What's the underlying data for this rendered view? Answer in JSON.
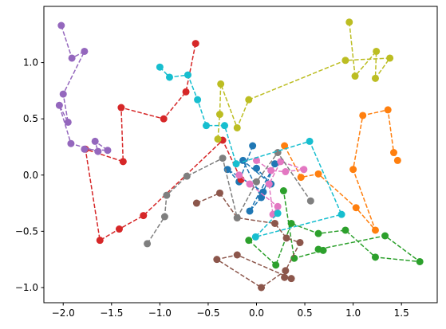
{
  "chart_data": {
    "type": "line",
    "xlim": [
      -2.2,
      1.87
    ],
    "ylim": [
      -1.135,
      1.5
    ],
    "xticks": [
      {
        "value": -2,
        "label": "−2.0"
      },
      {
        "value": -1.5,
        "label": "−1.5"
      },
      {
        "value": -1,
        "label": "−1.0"
      },
      {
        "value": -0.5,
        "label": "−0.5"
      },
      {
        "value": 0,
        "label": "0.0"
      },
      {
        "value": 0.5,
        "label": "0.5"
      },
      {
        "value": 1,
        "label": "1.0"
      },
      {
        "value": 1.5,
        "label": "1.5"
      }
    ],
    "yticks": [
      {
        "value": -1,
        "label": "−1.0"
      },
      {
        "value": -0.5,
        "label": "−0.5"
      },
      {
        "value": 0,
        "label": "0.0"
      },
      {
        "value": 0.5,
        "label": "0.5"
      },
      {
        "value": 1,
        "label": "1.0"
      }
    ],
    "series": [
      {
        "color": "#1f77b4",
        "x": [
          -0.04,
          -0.18,
          -0.3,
          0.07,
          0.19,
          -0.07,
          0.05,
          -0.14,
          0.15,
          0
        ],
        "values": [
          0.26,
          -0.06,
          0.05,
          -0.15,
          0.1,
          -0.32,
          -0.2,
          0.13,
          -0.08,
          0.06
        ]
      },
      {
        "color": "#ff7f0e",
        "x": [
          0.29,
          0.46,
          0.64,
          1.03,
          1.23,
          1.0,
          1.1,
          1.36,
          1.42,
          1.46
        ],
        "values": [
          0.26,
          -0.02,
          0.01,
          -0.29,
          -0.49,
          0.05,
          0.53,
          0.58,
          0.2,
          0.13
        ]
      },
      {
        "color": "#2ca02c",
        "x": [
          -0.08,
          0.2,
          0.36,
          0.64,
          0.92,
          1.23,
          1.69,
          1.33,
          0.64,
          0.69,
          0.39,
          0.28
        ],
        "values": [
          -0.58,
          -0.8,
          -0.43,
          -0.52,
          -0.49,
          -0.73,
          -0.77,
          -0.54,
          -0.66,
          -0.67,
          -0.74,
          -0.14
        ]
      },
      {
        "color": "#d62728",
        "x": [
          -0.63,
          -0.73,
          -0.96,
          -1.4,
          -1.38,
          -1.77,
          -1.62,
          -1.42,
          -1.17,
          -0.35,
          -0.16
        ],
        "values": [
          1.17,
          0.74,
          0.5,
          0.6,
          0.12,
          0.23,
          -0.58,
          -0.48,
          -0.36,
          0.31,
          -0.04
        ]
      },
      {
        "color": "#9467bd",
        "x": [
          -2.02,
          -1.91,
          -1.78,
          -2.0,
          -1.95,
          -2.04,
          -1.92,
          -1.64,
          -1.67,
          -1.54,
          -1.78
        ],
        "values": [
          1.33,
          1.04,
          1.1,
          0.72,
          0.47,
          0.62,
          0.28,
          0.21,
          0.3,
          0.22,
          0.23
        ]
      },
      {
        "color": "#8c564b",
        "x": [
          -0.62,
          -0.38,
          -0.2,
          0.19,
          0.31,
          0.45,
          0.3,
          0.05,
          -0.41,
          -0.2,
          0.36,
          0.29
        ],
        "values": [
          -0.25,
          -0.16,
          -0.38,
          -0.43,
          -0.56,
          -0.6,
          -0.85,
          -1.0,
          -0.75,
          -0.71,
          -0.92,
          -0.91
        ]
      },
      {
        "color": "#e377c2",
        "x": [
          0,
          0.15,
          0.3,
          0.49,
          0.25,
          0.13,
          0.17,
          0.22,
          -0.07,
          -0.18
        ],
        "values": [
          0.13,
          0.04,
          0.03,
          0.05,
          0.12,
          -0.08,
          -0.35,
          -0.28,
          -0.08,
          0
        ]
      },
      {
        "color": "#7f7f7f",
        "x": [
          -1.13,
          -0.95,
          -0.93,
          -0.72,
          -0.35,
          -0.2,
          0,
          0.22,
          0.56
        ],
        "values": [
          -0.61,
          -0.37,
          -0.18,
          -0.01,
          0.15,
          -0.38,
          -0.06,
          0.2,
          -0.23
        ]
      },
      {
        "color": "#bcbd22",
        "x": [
          0.96,
          1.02,
          1.24,
          1.23,
          1.38,
          0.92,
          -0.08,
          -0.2,
          -0.37,
          -0.38,
          -0.4
        ],
        "values": [
          1.36,
          0.88,
          1.1,
          0.86,
          1.04,
          1.02,
          0.67,
          0.42,
          0.81,
          0.54,
          0.32
        ]
      },
      {
        "color": "#17becf",
        "x": [
          -1.0,
          -0.9,
          -0.71,
          -0.61,
          -0.52,
          -0.33,
          -0.21,
          0.55,
          0.88,
          -0.01,
          0.22
        ],
        "values": [
          0.96,
          0.87,
          0.89,
          0.67,
          0.44,
          0.44,
          0.1,
          0.3,
          -0.35,
          -0.55,
          -0.34
        ]
      }
    ]
  }
}
